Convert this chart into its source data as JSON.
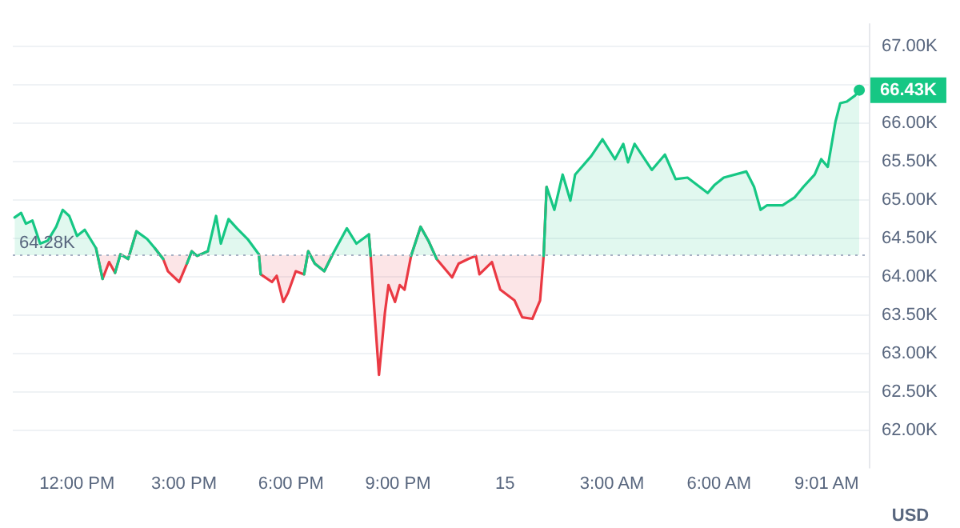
{
  "chart_data": {
    "type": "area",
    "ylabel": "USD",
    "x": [
      "--04-14T10:15",
      "--04-14T10:26",
      "--04-14T10:34",
      "--04-14T10:45",
      "--04-14T10:58",
      "--04-14T11:11",
      "--04-14T11:25",
      "--04-14T11:36",
      "--04-14T11:47",
      "--04-14T12:00",
      "--04-14T12:13",
      "--04-14T12:32",
      "--04-14T12:43",
      "--04-14T12:54",
      "--04-14T13:04",
      "--04-14T13:13",
      "--04-14T13:26",
      "--04-14T13:40",
      "--04-14T13:58",
      "--04-14T14:11",
      "--04-14T14:25",
      "--04-14T14:33",
      "--04-14T14:52",
      "--04-14T15:05",
      "--04-14T15:13",
      "--04-14T15:22",
      "--04-14T15:40",
      "--04-14T15:54",
      "--04-14T16:02",
      "--04-14T16:15",
      "--04-14T16:29",
      "--04-14T16:47",
      "--04-14T17:06",
      "--04-14T17:09",
      "--04-14T17:28",
      "--04-14T17:36",
      "--04-14T17:47",
      "--04-14T17:55",
      "--04-14T18:08",
      "--04-14T18:22",
      "--04-14T18:29",
      "--04-14T18:40",
      "--04-14T18:56",
      "--04-14T19:10",
      "--04-14T19:34",
      "--04-14T19:50",
      "--04-14T20:11",
      "--04-14T20:14",
      "--04-14T20:20",
      "--04-14T20:28",
      "--04-14T20:38",
      "--04-14T20:44",
      "--04-14T20:55",
      "--04-14T21:03",
      "--04-14T21:11",
      "--04-14T21:22",
      "--04-14T21:38",
      "--04-14T21:51",
      "--04-14T22:05",
      "--04-14T22:31",
      "--04-14T22:42",
      "--04-14T22:58",
      "--04-14T23:11",
      "--04-14T23:17",
      "--04-14T23:38",
      "--04-14T23:52",
      "--04-15T00:16",
      "--04-15T00:29",
      "--04-15T00:46",
      "--04-15T00:59",
      "--04-15T01:05",
      "--04-15T01:10",
      "--04-15T01:23",
      "--04-15T01:37",
      "--04-15T01:50",
      "--04-15T01:58",
      "--04-15T02:25",
      "--04-15T02:44",
      "--04-15T03:05",
      "--04-15T03:19",
      "--04-15T03:27",
      "--04-15T03:38",
      "--04-15T04:07",
      "--04-15T04:29",
      "--04-15T04:47",
      "--04-15T05:07",
      "--04-15T05:41",
      "--04-15T05:52",
      "--04-15T06:08",
      "--04-15T06:46",
      "--04-15T06:59",
      "--04-15T07:10",
      "--04-15T07:21",
      "--04-15T07:47",
      "--04-15T08:07",
      "--04-15T08:22",
      "--04-15T08:41",
      "--04-15T08:52",
      "--04-15T09:03",
      "--04-15T09:16",
      "--04-15T09:24",
      "--04-15T09:35",
      "--04-15T09:49",
      "--04-15T09:56"
    ],
    "series": [
      {
        "color": "#16c784",
        "values": [
          64770,
          64830,
          64690,
          64730,
          64430,
          64470,
          64650,
          64870,
          64790,
          64530,
          64610,
          64370,
          63970,
          null,
          64050,
          64290,
          64230,
          64590,
          64490,
          64370,
          64230,
          null,
          null,
          64170,
          64330,
          64270,
          64330,
          64790,
          64430,
          64750,
          64630,
          64490,
          64290,
          64030,
          null,
          null,
          null,
          null,
          null,
          64030,
          64330,
          64170,
          64070,
          64290,
          64630,
          64430,
          64550,
          64270,
          null,
          null,
          null,
          null,
          null,
          null,
          null,
          64270,
          64650,
          64470,
          64230,
          null,
          null,
          null,
          null,
          null,
          null,
          null,
          null,
          null,
          null,
          null,
          64270,
          65170,
          64870,
          65330,
          64990,
          65330,
          65570,
          65790,
          65530,
          65730,
          65490,
          65730,
          65390,
          65590,
          65270,
          65290,
          65090,
          65190,
          65290,
          65370,
          65170,
          64870,
          64930,
          64930,
          65030,
          65170,
          65330,
          65530,
          65430,
          66020,
          66260,
          66280,
          66360,
          66430
        ]
      },
      {
        "color": "#ea3943",
        "values": [
          null,
          null,
          null,
          null,
          null,
          null,
          null,
          null,
          null,
          null,
          null,
          64370,
          63970,
          64190,
          64050,
          64290,
          64230,
          64590,
          null,
          64370,
          64230,
          64070,
          63930,
          64170,
          64330,
          64270,
          64330,
          null,
          null,
          null,
          null,
          null,
          64290,
          64030,
          63930,
          64010,
          63670,
          63790,
          64070,
          64030,
          64330,
          64170,
          64070,
          64290,
          null,
          null,
          64550,
          64270,
          63590,
          62720,
          63530,
          63890,
          63670,
          63890,
          63830,
          64270,
          64650,
          64470,
          64230,
          63990,
          64170,
          64230,
          64270,
          64030,
          64190,
          63830,
          63690,
          63470,
          63450,
          63690,
          64270,
          65170,
          null,
          null,
          null,
          null,
          null,
          null,
          null,
          null,
          null,
          null,
          null,
          null,
          null,
          null,
          null,
          null,
          null,
          null,
          null,
          null,
          null,
          null,
          null,
          null,
          null,
          null,
          null,
          null,
          null,
          null,
          null,
          null
        ]
      }
    ],
    "xlim": [
      "--04-14T10:12",
      "--04-15T10:12"
    ],
    "xticks": [
      {
        "value": "--04-14T12:00",
        "label": "12:00 PM"
      },
      {
        "value": "--04-14T15:00",
        "label": "3:00 PM"
      },
      {
        "value": "--04-14T18:00",
        "label": "6:00 PM"
      },
      {
        "value": "--04-14T21:00",
        "label": "9:00 PM"
      },
      {
        "value": "--04-15T00:00",
        "label": "15"
      },
      {
        "value": "--04-15T03:00",
        "label": "3:00 AM"
      },
      {
        "value": "--04-15T06:00",
        "label": "6:00 AM"
      },
      {
        "value": "--04-15T09:01",
        "label": "9:01 AM"
      }
    ],
    "ylim": [
      61500,
      67300
    ],
    "yticks": [
      {
        "value": 62000,
        "label": "62.00K"
      },
      {
        "value": 62500,
        "label": "62.50K"
      },
      {
        "value": 63000,
        "label": "63.00K"
      },
      {
        "value": 63500,
        "label": "63.50K"
      },
      {
        "value": 64000,
        "label": "64.00K"
      },
      {
        "value": 64500,
        "label": "64.50K"
      },
      {
        "value": 65000,
        "label": "65.00K"
      },
      {
        "value": 65500,
        "label": "65.50K"
      },
      {
        "value": 66000,
        "label": "66.00K"
      },
      {
        "value": 66500,
        "label": null
      },
      {
        "value": 67000,
        "label": "67.00K"
      }
    ],
    "ref_lines": [
      {
        "axis": "y",
        "value": 64280,
        "label": "64.28K",
        "line_style": "dotted",
        "color": "#a6b0c3"
      }
    ],
    "annotations": [
      {
        "text": "66.43K",
        "x": "--04-15T09:56",
        "y": 66430
      }
    ],
    "grid": "y",
    "marker": "none",
    "line_style": "solid",
    "legend": false
  }
}
